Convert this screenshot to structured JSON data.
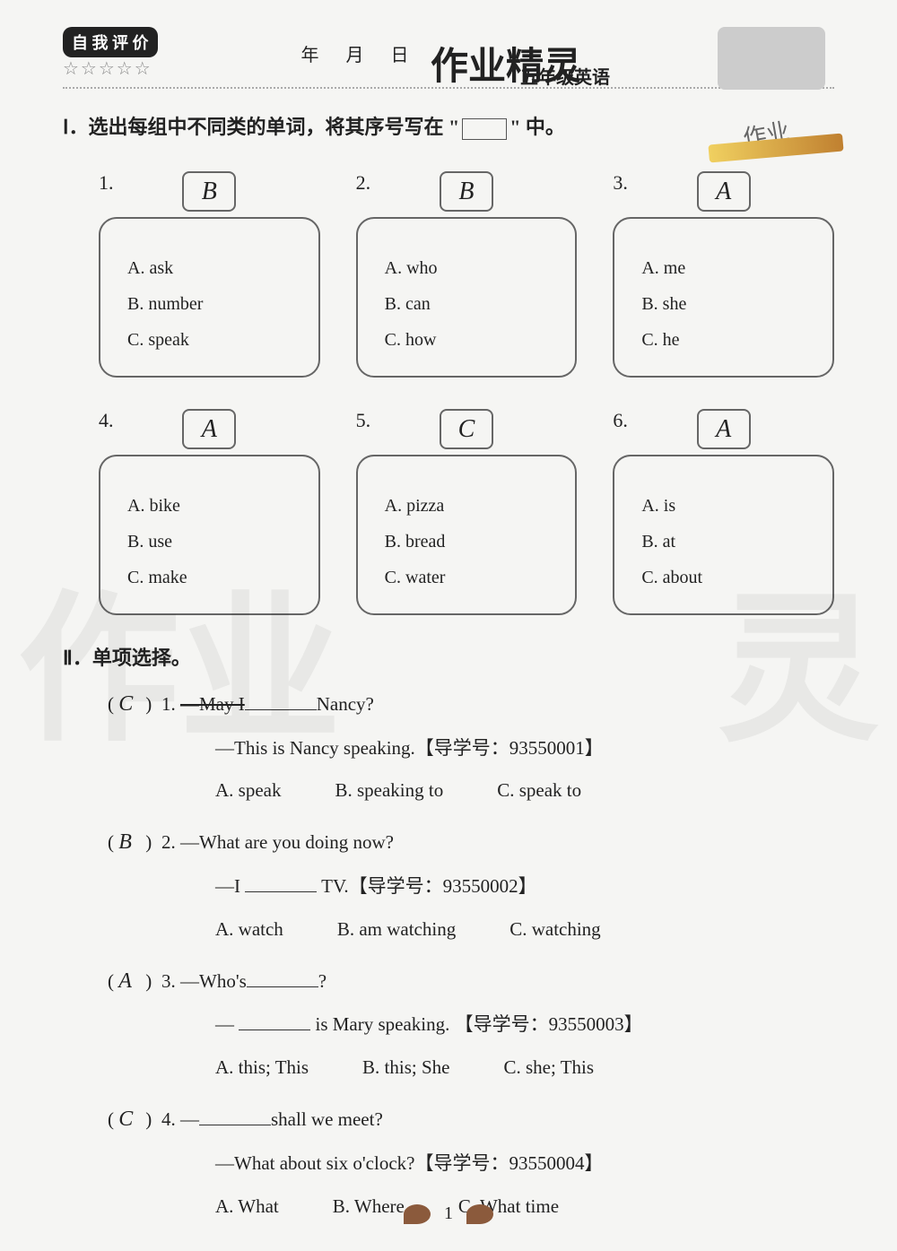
{
  "header": {
    "badge": "自 我 评 价",
    "stars": "☆☆☆☆☆",
    "date_labels": {
      "year": "年",
      "month": "月",
      "day": "日"
    },
    "script_title": "作业精灵",
    "grade": "五年级英语"
  },
  "section1": {
    "title": "Ⅰ．选出每组中不同类的单词，将其序号写在 \"       \" 中。",
    "stamp_text": "作业",
    "cards": [
      {
        "num": "1.",
        "answer": "B",
        "options": [
          "A.  ask",
          "B.  number",
          "C.  speak"
        ]
      },
      {
        "num": "2.",
        "answer": "B",
        "options": [
          "A.  who",
          "B.  can",
          "C.  how"
        ]
      },
      {
        "num": "3.",
        "answer": "A",
        "options": [
          "A.  me",
          "B.  she",
          "C.  he"
        ]
      },
      {
        "num": "4.",
        "answer": "A",
        "options": [
          "A.  bike",
          "B.  use",
          "C.  make"
        ]
      },
      {
        "num": "5.",
        "answer": "C",
        "options": [
          "A.  pizza",
          "B.  bread",
          "C.  water"
        ]
      },
      {
        "num": "6.",
        "answer": "A",
        "options": [
          "A.  is",
          "B.  at",
          "C.  about"
        ]
      }
    ]
  },
  "section2": {
    "title": "Ⅱ．单项选择。",
    "items": [
      {
        "answer": "C",
        "num": "1.",
        "q1_prefix": "—May I",
        "q1_suffix": " Nancy?",
        "line2": "—This is Nancy speaking.【导学号：93550001】",
        "opts": [
          "A.  speak",
          "B.  speaking to",
          "C.  speak to"
        ]
      },
      {
        "answer": "B",
        "num": "2.",
        "q1": "—What are you doing now?",
        "line2_prefix": "—I ",
        "line2_suffix": " TV.【导学号：93550002】",
        "opts": [
          "A.  watch",
          "B.  am watching",
          "C.  watching"
        ]
      },
      {
        "answer": "A",
        "num": "3.",
        "q1_prefix": "—Who's ",
        "q1_suffix": "?",
        "line2_prefix": "—",
        "line2_suffix": " is Mary speaking. 【导学号：93550003】",
        "opts": [
          "A.  this; This",
          "B.  this; She",
          "C.  she; This"
        ]
      },
      {
        "answer": "C",
        "num": "4.",
        "q1_prefix": "—",
        "q1_suffix": " shall we meet?",
        "line2": "—What about six o'clock?【导学号：93550004】",
        "opts": [
          "A.  What",
          "B.  Where",
          "C.  What time"
        ]
      }
    ]
  },
  "footer": {
    "page": "1"
  },
  "colors": {
    "bg": "#f5f5f3",
    "text": "#222",
    "border": "#666",
    "badge_bg": "#222",
    "badge_text": "#ffffff"
  }
}
